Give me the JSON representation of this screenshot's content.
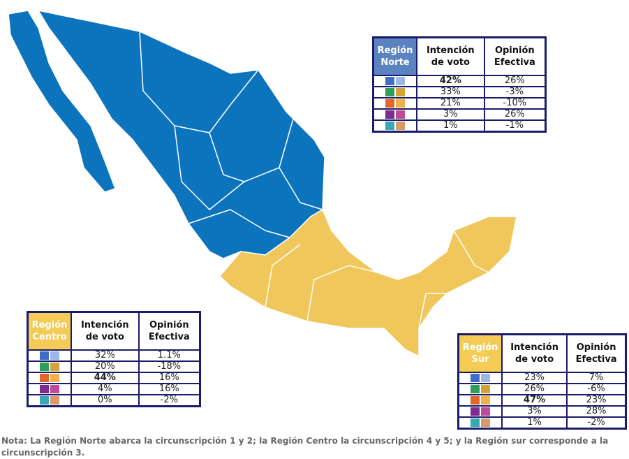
{
  "tables": [
    {
      "region": "Región Norte",
      "header_color": "#5a83c0",
      "col1": "Intención de voto",
      "col2": "Opinión Efectiva",
      "emphasis_row": 0,
      "rows": [
        [
          "42%",
          "26%"
        ],
        [
          "33%",
          "-3%"
        ],
        [
          "21%",
          "-10%"
        ],
        [
          "3%",
          "26%"
        ],
        [
          "1%",
          "-1%"
        ]
      ]
    },
    {
      "region": "Región Centro",
      "header_color": "#f3cb55",
      "col1": "Intención de voto",
      "col2": "Opinión Efectiva",
      "emphasis_row": 2,
      "rows": [
        [
          "32%",
          "1.1%"
        ],
        [
          "20%",
          "-18%"
        ],
        [
          "44%",
          "16%"
        ],
        [
          "4%",
          "16%"
        ],
        [
          "0%",
          "-2%"
        ]
      ]
    },
    {
      "region": "Región Sur",
      "header_color": "#f3cb55",
      "col1": "Intención de voto",
      "col2": "Opinión Efectiva",
      "emphasis_row": 2,
      "rows": [
        [
          "23%",
          "7%"
        ],
        [
          "26%",
          "-6%"
        ],
        [
          "47%",
          "23%"
        ],
        [
          "3%",
          "28%"
        ],
        [
          "1%",
          "-2%"
        ]
      ]
    }
  ],
  "note": "Nota: La Región Norte abarca la circunscripción 1 y 2; la Región Centro la circunscripción  4 y 5; y la Región sur corresponde a la circunscripción 3."
}
